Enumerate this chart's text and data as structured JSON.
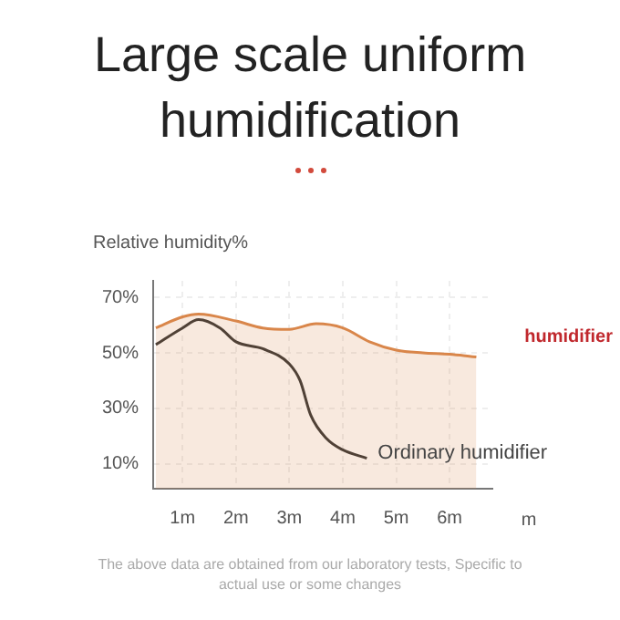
{
  "chart_data": {
    "type": "line",
    "title": "Large scale uniform humidification",
    "ylabel": "Relative humidity%",
    "xlabel": "m",
    "annotations": [
      "The above data are obtained from our laboratory tests, Specific to actual use or some changes"
    ],
    "xlim": [
      0.45,
      6.8
    ],
    "xticks": [
      {
        "value": 1,
        "label": "1m"
      },
      {
        "value": 2,
        "label": "2m"
      },
      {
        "value": 3,
        "label": "3m"
      },
      {
        "value": 4,
        "label": "4m"
      },
      {
        "value": 5,
        "label": "5m"
      },
      {
        "value": 6,
        "label": "6m"
      }
    ],
    "ylim": [
      1,
      76
    ],
    "yticks": [
      {
        "value": 10,
        "label": "10%"
      },
      {
        "value": 30,
        "label": "30%"
      },
      {
        "value": 50,
        "label": "50%"
      },
      {
        "value": 70,
        "label": "70%"
      }
    ],
    "grid": true,
    "legend": false,
    "marker": "none",
    "line_style": "solid",
    "series": [
      {
        "name": "humidifier",
        "type": "area",
        "color": "#d9864a",
        "x": [
          0.5,
          1,
          1.3,
          2,
          2.5,
          3,
          3.5,
          4,
          4.5,
          5,
          5.5,
          6,
          6.5
        ],
        "values": [
          59,
          63,
          64,
          61.5,
          59,
          58.5,
          60.5,
          59,
          54,
          51,
          50,
          49.5,
          48.5
        ]
      },
      {
        "name": "Ordinary humidifier",
        "type": "line",
        "color": "#333333",
        "x": [
          0.5,
          1,
          1.3,
          1.7,
          2,
          2.5,
          3,
          3.2,
          3.4,
          3.7,
          4,
          4.45
        ],
        "values": [
          53,
          59,
          62,
          59,
          54,
          51.5,
          46,
          40,
          27.5,
          19,
          15,
          12
        ]
      }
    ]
  }
}
